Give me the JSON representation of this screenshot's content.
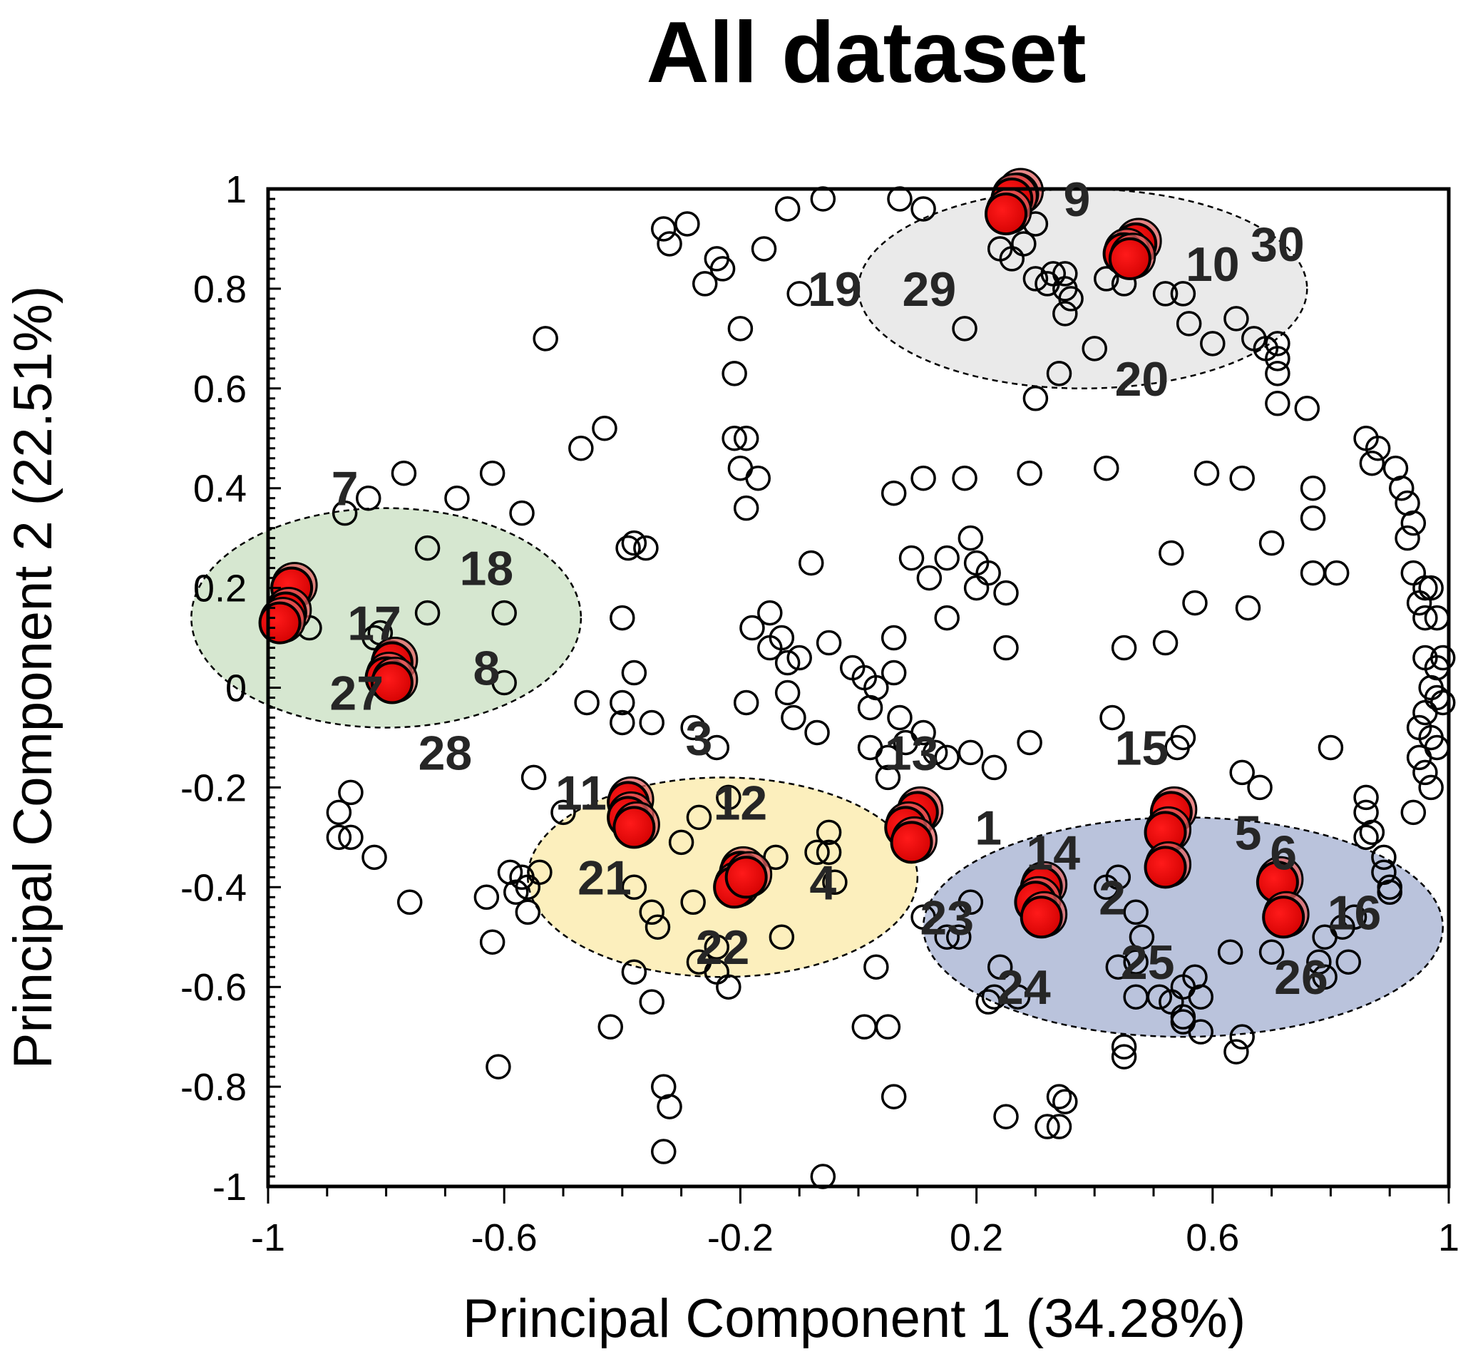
{
  "chart_data": {
    "type": "scatter",
    "title": "All dataset",
    "xlabel": "Principal Component 1 (34.28%)",
    "ylabel": "Principal Component 2 (22.51%)",
    "xlim": [
      -1,
      1
    ],
    "ylim": [
      -1,
      1
    ],
    "x_tick_labels": [
      "-1",
      "-0.6",
      "-0.2",
      "0.2",
      "0.6",
      "1"
    ],
    "x_tick_values": [
      -1,
      -0.6,
      -0.2,
      0.2,
      0.6,
      1
    ],
    "y_tick_labels": [
      "1",
      "0.8",
      "0.6",
      "0.4",
      "0.2",
      "0",
      "-0.2",
      "-0.4",
      "-0.6",
      "-0.8",
      "-1"
    ],
    "y_tick_values": [
      1,
      0.8,
      0.6,
      0.4,
      0.2,
      0,
      -0.2,
      -0.4,
      -0.6,
      -0.8,
      -1
    ],
    "colors": {
      "highlight": "#e00000",
      "highlight_shadow": "#e06060",
      "open_marker": "#000000",
      "cluster_green": "#cfe3c8",
      "cluster_grey": "#e6e6e6",
      "cluster_yellow": "#fcecb2",
      "cluster_blue": "#aeb8d6"
    },
    "clusters": [
      {
        "name": "green",
        "color": "#cfe3c8",
        "center": [
          -0.8,
          0.14
        ],
        "radius": [
          0.33,
          0.22
        ]
      },
      {
        "name": "grey",
        "color": "#e6e6e6",
        "center": [
          0.38,
          0.8
        ],
        "radius": [
          0.38,
          0.2
        ]
      },
      {
        "name": "yellow",
        "color": "#fcecb2",
        "center": [
          -0.23,
          -0.38
        ],
        "radius": [
          0.33,
          0.2
        ]
      },
      {
        "name": "blue",
        "color": "#aeb8d6",
        "center": [
          0.55,
          -0.48
        ],
        "radius": [
          0.44,
          0.22
        ]
      }
    ],
    "highlighted_points": [
      {
        "x": -0.96,
        "y": 0.2
      },
      {
        "x": -0.97,
        "y": 0.15
      },
      {
        "x": -0.98,
        "y": 0.13
      },
      {
        "x": -0.79,
        "y": 0.05
      },
      {
        "x": -0.8,
        "y": 0.02
      },
      {
        "x": -0.79,
        "y": 0.01
      },
      {
        "x": 0.27,
        "y": 0.99
      },
      {
        "x": 0.26,
        "y": 0.98
      },
      {
        "x": 0.25,
        "y": 0.95
      },
      {
        "x": 0.47,
        "y": 0.89
      },
      {
        "x": 0.45,
        "y": 0.87
      },
      {
        "x": 0.46,
        "y": 0.86
      },
      {
        "x": -0.39,
        "y": -0.23
      },
      {
        "x": -0.39,
        "y": -0.26
      },
      {
        "x": -0.38,
        "y": -0.28
      },
      {
        "x": -0.2,
        "y": -0.37
      },
      {
        "x": -0.21,
        "y": -0.4
      },
      {
        "x": -0.19,
        "y": -0.38
      },
      {
        "x": 0.1,
        "y": -0.25
      },
      {
        "x": 0.08,
        "y": -0.28
      },
      {
        "x": 0.09,
        "y": -0.31
      },
      {
        "x": 0.31,
        "y": -0.4
      },
      {
        "x": 0.3,
        "y": -0.43
      },
      {
        "x": 0.31,
        "y": -0.46
      },
      {
        "x": 0.53,
        "y": -0.25
      },
      {
        "x": 0.52,
        "y": -0.29
      },
      {
        "x": 0.52,
        "y": -0.36
      },
      {
        "x": 0.71,
        "y": -0.39
      },
      {
        "x": 0.72,
        "y": -0.46
      }
    ],
    "open_points": [
      [
        -0.33,
        0.92
      ],
      [
        -0.32,
        0.89
      ],
      [
        -0.29,
        0.93
      ],
      [
        -0.24,
        0.86
      ],
      [
        -0.23,
        0.84
      ],
      [
        -0.26,
        0.81
      ],
      [
        -0.16,
        0.88
      ],
      [
        -0.12,
        0.96
      ],
      [
        -0.06,
        0.98
      ],
      [
        -0.1,
        0.79
      ],
      [
        -0.53,
        0.7
      ],
      [
        -0.2,
        0.72
      ],
      [
        -0.21,
        0.63
      ],
      [
        -0.21,
        0.5
      ],
      [
        -0.19,
        0.5
      ],
      [
        -0.2,
        0.44
      ],
      [
        -0.17,
        0.42
      ],
      [
        -0.19,
        0.36
      ],
      [
        -0.43,
        0.52
      ],
      [
        -0.47,
        0.48
      ],
      [
        -0.57,
        0.35
      ],
      [
        -0.36,
        0.28
      ],
      [
        -0.39,
        0.28
      ],
      [
        -0.38,
        0.29
      ],
      [
        -0.08,
        0.25
      ],
      [
        -0.4,
        0.14
      ],
      [
        -0.15,
        0.15
      ],
      [
        -0.18,
        0.12
      ],
      [
        -0.13,
        0.1
      ],
      [
        -0.15,
        0.08
      ],
      [
        -0.12,
        0.05
      ],
      [
        -0.1,
        0.06
      ],
      [
        -0.05,
        0.09
      ],
      [
        -0.38,
        0.03
      ],
      [
        -0.46,
        -0.03
      ],
      [
        -0.4,
        -0.03
      ],
      [
        -0.4,
        -0.07
      ],
      [
        -0.35,
        -0.07
      ],
      [
        -0.28,
        -0.08
      ],
      [
        -0.24,
        -0.12
      ],
      [
        -0.19,
        -0.03
      ],
      [
        -0.12,
        -0.01
      ],
      [
        -0.11,
        -0.06
      ],
      [
        -0.07,
        -0.09
      ],
      [
        -0.01,
        0.04
      ],
      [
        0.01,
        0.02
      ],
      [
        0.03,
        0.0
      ],
      [
        0.06,
        0.03
      ],
      [
        0.02,
        -0.04
      ],
      [
        0.07,
        -0.06
      ],
      [
        0.08,
        -0.11
      ],
      [
        0.11,
        -0.09
      ],
      [
        0.13,
        -0.13
      ],
      [
        0.15,
        -0.14
      ],
      [
        0.19,
        -0.13
      ],
      [
        0.23,
        -0.16
      ],
      [
        0.29,
        -0.11
      ],
      [
        0.02,
        -0.12
      ],
      [
        0.05,
        -0.14
      ],
      [
        0.05,
        -0.18
      ],
      [
        0.06,
        0.1
      ],
      [
        0.06,
        0.39
      ],
      [
        0.09,
        0.26
      ],
      [
        0.11,
        0.42
      ],
      [
        0.12,
        0.22
      ],
      [
        0.15,
        0.26
      ],
      [
        0.15,
        0.14
      ],
      [
        0.18,
        0.42
      ],
      [
        0.19,
        0.3
      ],
      [
        0.2,
        0.25
      ],
      [
        0.2,
        0.2
      ],
      [
        0.22,
        0.23
      ],
      [
        0.25,
        0.19
      ],
      [
        0.25,
        0.08
      ],
      [
        0.29,
        0.43
      ],
      [
        0.42,
        0.44
      ],
      [
        0.45,
        0.08
      ],
      [
        0.43,
        -0.06
      ],
      [
        0.52,
        0.09
      ],
      [
        0.53,
        0.27
      ],
      [
        0.54,
        -0.12
      ],
      [
        0.55,
        -0.1
      ],
      [
        0.57,
        0.17
      ],
      [
        0.59,
        0.43
      ],
      [
        0.65,
        0.42
      ],
      [
        0.66,
        0.16
      ],
      [
        0.65,
        -0.17
      ],
      [
        0.68,
        -0.2
      ],
      [
        0.7,
        0.29
      ],
      [
        0.77,
        0.4
      ],
      [
        0.77,
        0.34
      ],
      [
        0.77,
        0.23
      ],
      [
        0.81,
        0.23
      ],
      [
        0.8,
        -0.12
      ],
      [
        0.86,
        0.5
      ],
      [
        0.88,
        0.48
      ],
      [
        0.87,
        0.45
      ],
      [
        0.91,
        0.44
      ],
      [
        0.92,
        0.4
      ],
      [
        0.93,
        0.37
      ],
      [
        0.94,
        0.33
      ],
      [
        0.93,
        0.3
      ],
      [
        0.94,
        0.23
      ],
      [
        0.96,
        0.2
      ],
      [
        0.97,
        0.2
      ],
      [
        0.95,
        0.17
      ],
      [
        0.96,
        0.14
      ],
      [
        0.98,
        0.14
      ],
      [
        0.96,
        0.06
      ],
      [
        0.98,
        0.04
      ],
      [
        0.99,
        0.06
      ],
      [
        0.97,
        0.0
      ],
      [
        0.98,
        -0.02
      ],
      [
        0.99,
        -0.03
      ],
      [
        0.96,
        -0.05
      ],
      [
        0.95,
        -0.08
      ],
      [
        0.97,
        -0.1
      ],
      [
        0.98,
        -0.12
      ],
      [
        0.95,
        -0.14
      ],
      [
        0.96,
        -0.17
      ],
      [
        0.97,
        -0.2
      ],
      [
        0.94,
        -0.25
      ],
      [
        0.86,
        -0.22
      ],
      [
        0.86,
        -0.25
      ],
      [
        0.87,
        -0.29
      ],
      [
        0.86,
        -0.3
      ],
      [
        0.89,
        -0.34
      ],
      [
        0.89,
        -0.37
      ],
      [
        0.9,
        -0.4
      ],
      [
        0.9,
        -0.41
      ],
      [
        0.84,
        -0.46
      ],
      [
        0.82,
        -0.48
      ],
      [
        0.79,
        -0.5
      ],
      [
        0.78,
        -0.55
      ],
      [
        0.79,
        -0.58
      ],
      [
        0.83,
        -0.55
      ],
      [
        0.65,
        -0.7
      ],
      [
        0.64,
        -0.73
      ],
      [
        0.7,
        -0.53
      ],
      [
        0.63,
        -0.53
      ],
      [
        0.57,
        -0.58
      ],
      [
        0.58,
        -0.62
      ],
      [
        0.55,
        -0.6
      ],
      [
        0.55,
        -0.66
      ],
      [
        0.53,
        -0.63
      ],
      [
        0.51,
        -0.62
      ],
      [
        0.47,
        -0.62
      ],
      [
        0.44,
        -0.56
      ],
      [
        0.47,
        -0.55
      ],
      [
        0.48,
        -0.5
      ],
      [
        0.47,
        -0.45
      ],
      [
        0.44,
        -0.38
      ],
      [
        0.42,
        -0.4
      ],
      [
        0.55,
        -0.67
      ],
      [
        0.58,
        -0.69
      ],
      [
        0.45,
        -0.72
      ],
      [
        0.45,
        -0.74
      ],
      [
        0.27,
        -0.62
      ],
      [
        0.24,
        -0.56
      ],
      [
        0.23,
        -0.62
      ],
      [
        0.22,
        -0.63
      ],
      [
        0.17,
        -0.5
      ],
      [
        0.15,
        -0.5
      ],
      [
        0.19,
        -0.43
      ],
      [
        0.11,
        -0.46
      ],
      [
        0.03,
        -0.56
      ],
      [
        0.01,
        -0.68
      ],
      [
        0.05,
        -0.68
      ],
      [
        0.06,
        -0.82
      ],
      [
        0.25,
        -0.86
      ],
      [
        0.32,
        -0.88
      ],
      [
        0.34,
        -0.88
      ],
      [
        0.35,
        -0.83
      ],
      [
        0.34,
        -0.82
      ],
      [
        -0.33,
        -0.8
      ],
      [
        -0.32,
        -0.84
      ],
      [
        -0.33,
        -0.93
      ],
      [
        -0.06,
        -0.98
      ],
      [
        -0.42,
        -0.68
      ],
      [
        -0.35,
        -0.63
      ],
      [
        -0.38,
        -0.57
      ],
      [
        -0.27,
        -0.55
      ],
      [
        -0.24,
        -0.57
      ],
      [
        -0.22,
        -0.6
      ],
      [
        -0.24,
        -0.52
      ],
      [
        -0.28,
        -0.43
      ],
      [
        -0.3,
        -0.31
      ],
      [
        -0.27,
        -0.26
      ],
      [
        -0.22,
        -0.22
      ],
      [
        -0.14,
        -0.34
      ],
      [
        -0.07,
        -0.33
      ],
      [
        -0.05,
        -0.33
      ],
      [
        -0.05,
        -0.29
      ],
      [
        -0.04,
        -0.39
      ],
      [
        -0.13,
        -0.5
      ],
      [
        -0.35,
        -0.45
      ],
      [
        -0.34,
        -0.48
      ],
      [
        -0.38,
        -0.4
      ],
      [
        -0.54,
        -0.37
      ],
      [
        -0.57,
        -0.38
      ],
      [
        -0.56,
        -0.4
      ],
      [
        -0.58,
        -0.41
      ],
      [
        -0.59,
        -0.37
      ],
      [
        -0.56,
        -0.45
      ],
      [
        -0.5,
        -0.25
      ],
      [
        -0.55,
        -0.18
      ],
      [
        -0.62,
        -0.51
      ],
      [
        -0.63,
        -0.42
      ],
      [
        -0.61,
        -0.76
      ],
      [
        -0.76,
        -0.43
      ],
      [
        -0.82,
        -0.34
      ],
      [
        -0.86,
        -0.3
      ],
      [
        -0.88,
        -0.3
      ],
      [
        -0.88,
        -0.25
      ],
      [
        -0.86,
        -0.21
      ],
      [
        -0.81,
        0.11
      ],
      [
        -0.82,
        0.1
      ],
      [
        -0.79,
        0.07
      ],
      [
        -0.73,
        0.15
      ],
      [
        -0.73,
        0.28
      ],
      [
        -0.77,
        0.43
      ],
      [
        -0.83,
        0.38
      ],
      [
        -0.87,
        0.35
      ],
      [
        -0.68,
        0.38
      ],
      [
        -0.62,
        0.43
      ],
      [
        -0.6,
        0.15
      ],
      [
        -0.6,
        0.01
      ],
      [
        -0.93,
        0.12
      ],
      [
        0.18,
        0.72
      ],
      [
        0.3,
        0.58
      ],
      [
        0.34,
        0.63
      ],
      [
        0.4,
        0.68
      ],
      [
        0.52,
        0.79
      ],
      [
        0.55,
        0.79
      ],
      [
        0.56,
        0.73
      ],
      [
        0.6,
        0.69
      ],
      [
        0.64,
        0.74
      ],
      [
        0.67,
        0.7
      ],
      [
        0.69,
        0.68
      ],
      [
        0.71,
        0.69
      ],
      [
        0.71,
        0.66
      ],
      [
        0.71,
        0.63
      ],
      [
        0.71,
        0.57
      ],
      [
        0.76,
        0.56
      ],
      [
        0.24,
        0.88
      ],
      [
        0.26,
        0.86
      ],
      [
        0.28,
        0.89
      ],
      [
        0.3,
        0.93
      ],
      [
        0.3,
        0.82
      ],
      [
        0.33,
        0.83
      ],
      [
        0.32,
        0.81
      ],
      [
        0.35,
        0.83
      ],
      [
        0.35,
        0.8
      ],
      [
        0.36,
        0.78
      ],
      [
        0.35,
        0.75
      ],
      [
        0.07,
        0.98
      ],
      [
        0.11,
        0.96
      ],
      [
        0.42,
        0.82
      ],
      [
        0.45,
        0.81
      ]
    ],
    "case_labels": [
      {
        "text": "7",
        "x": -0.87,
        "y": 0.4
      },
      {
        "text": "18",
        "x": -0.63,
        "y": 0.24
      },
      {
        "text": "17",
        "x": -0.82,
        "y": 0.13
      },
      {
        "text": "27",
        "x": -0.85,
        "y": -0.01
      },
      {
        "text": "8",
        "x": -0.63,
        "y": 0.04
      },
      {
        "text": "28",
        "x": -0.7,
        "y": -0.13
      },
      {
        "text": "9",
        "x": 0.37,
        "y": 0.98
      },
      {
        "text": "10",
        "x": 0.6,
        "y": 0.85
      },
      {
        "text": "30",
        "x": 0.71,
        "y": 0.89
      },
      {
        "text": "19",
        "x": -0.04,
        "y": 0.8
      },
      {
        "text": "29",
        "x": 0.12,
        "y": 0.8
      },
      {
        "text": "20",
        "x": 0.48,
        "y": 0.62
      },
      {
        "text": "3",
        "x": -0.27,
        "y": -0.1
      },
      {
        "text": "11",
        "x": -0.47,
        "y": -0.21
      },
      {
        "text": "12",
        "x": -0.2,
        "y": -0.23
      },
      {
        "text": "21",
        "x": -0.43,
        "y": -0.38
      },
      {
        "text": "4",
        "x": -0.06,
        "y": -0.39
      },
      {
        "text": "22",
        "x": -0.23,
        "y": -0.52
      },
      {
        "text": "13",
        "x": 0.09,
        "y": -0.13
      },
      {
        "text": "15",
        "x": 0.48,
        "y": -0.12
      },
      {
        "text": "1",
        "x": 0.22,
        "y": -0.28
      },
      {
        "text": "14",
        "x": 0.33,
        "y": -0.33
      },
      {
        "text": "5",
        "x": 0.66,
        "y": -0.29
      },
      {
        "text": "6",
        "x": 0.72,
        "y": -0.33
      },
      {
        "text": "2",
        "x": 0.43,
        "y": -0.42
      },
      {
        "text": "23",
        "x": 0.15,
        "y": -0.46
      },
      {
        "text": "16",
        "x": 0.84,
        "y": -0.45
      },
      {
        "text": "25",
        "x": 0.49,
        "y": -0.55
      },
      {
        "text": "24",
        "x": 0.28,
        "y": -0.6
      },
      {
        "text": "26",
        "x": 0.75,
        "y": -0.58
      }
    ]
  }
}
